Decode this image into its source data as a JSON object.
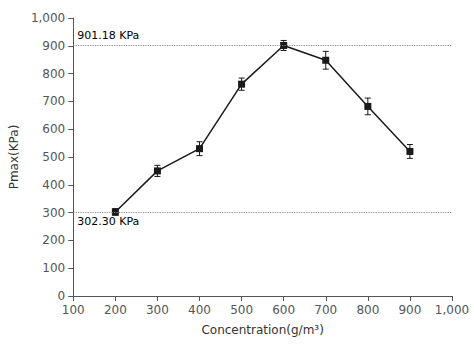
{
  "chart_data": {
    "type": "line",
    "x": [
      200,
      300,
      400,
      500,
      600,
      700,
      800,
      900
    ],
    "values": [
      302.3,
      450,
      530,
      762,
      901.18,
      848,
      682,
      520
    ],
    "yerr": [
      12,
      20,
      25,
      22,
      18,
      32,
      30,
      25
    ],
    "color": "#1a1a1a",
    "marker": "square",
    "xlabel": "Concentration(g/m³)",
    "ylabel": "Pmax(KPa)",
    "xlim": [
      100,
      1000
    ],
    "ylim": [
      0,
      1000
    ],
    "xticks": [
      100,
      200,
      300,
      400,
      500,
      600,
      700,
      800,
      900,
      1000
    ],
    "yticks": [
      0,
      100,
      200,
      300,
      400,
      500,
      600,
      700,
      800,
      900,
      1000
    ],
    "grid": false,
    "hlines": [
      {
        "value": 901.18,
        "label": "901.18 KPa"
      },
      {
        "value": 302.3,
        "label": "302.30 KPa"
      }
    ]
  }
}
